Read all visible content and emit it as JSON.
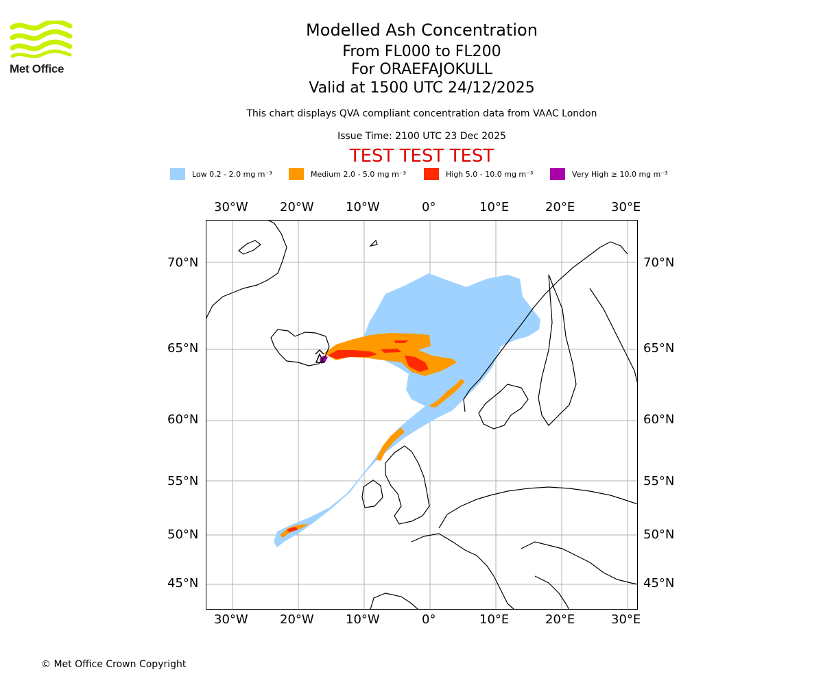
{
  "logo": {
    "text": "Met Office"
  },
  "title": {
    "main": "Modelled Ash Concentration",
    "levels": "From FL000 to FL200",
    "volcano": "For ORAEFAJOKULL",
    "valid": "Valid at 1500 UTC 24/12/2025"
  },
  "subtitle": "This chart displays QVA compliant concentration data from VAAC London",
  "issue_time": "Issue Time: 2100 UTC 23 Dec 2025",
  "test_banner": "TEST TEST TEST",
  "legend": [
    {
      "label": "Low 0.2 - 2.0 mg m⁻³",
      "color": "#a0d2ff"
    },
    {
      "label": "Medium 2.0 - 5.0 mg m⁻³",
      "color": "#ff9900"
    },
    {
      "label": "High 5.0 - 10.0 mg m⁻³",
      "color": "#ff2a00"
    },
    {
      "label": "Very High ≥ 10.0 mg m⁻³",
      "color": "#aa00aa"
    }
  ],
  "axes": {
    "lon_ticks": [
      "30°W",
      "20°W",
      "10°W",
      "0°",
      "10°E",
      "20°E",
      "30°E"
    ],
    "lat_ticks": [
      "70°N",
      "65°N",
      "60°N",
      "55°N",
      "50°N",
      "45°N"
    ]
  },
  "map": {
    "land_fill": "#ffffff",
    "sea_fill": "#ffffff",
    "coastline_color": "#000000",
    "grid_color": "#b0b0b0"
  },
  "copyright": "© Met Office Crown Copyright"
}
